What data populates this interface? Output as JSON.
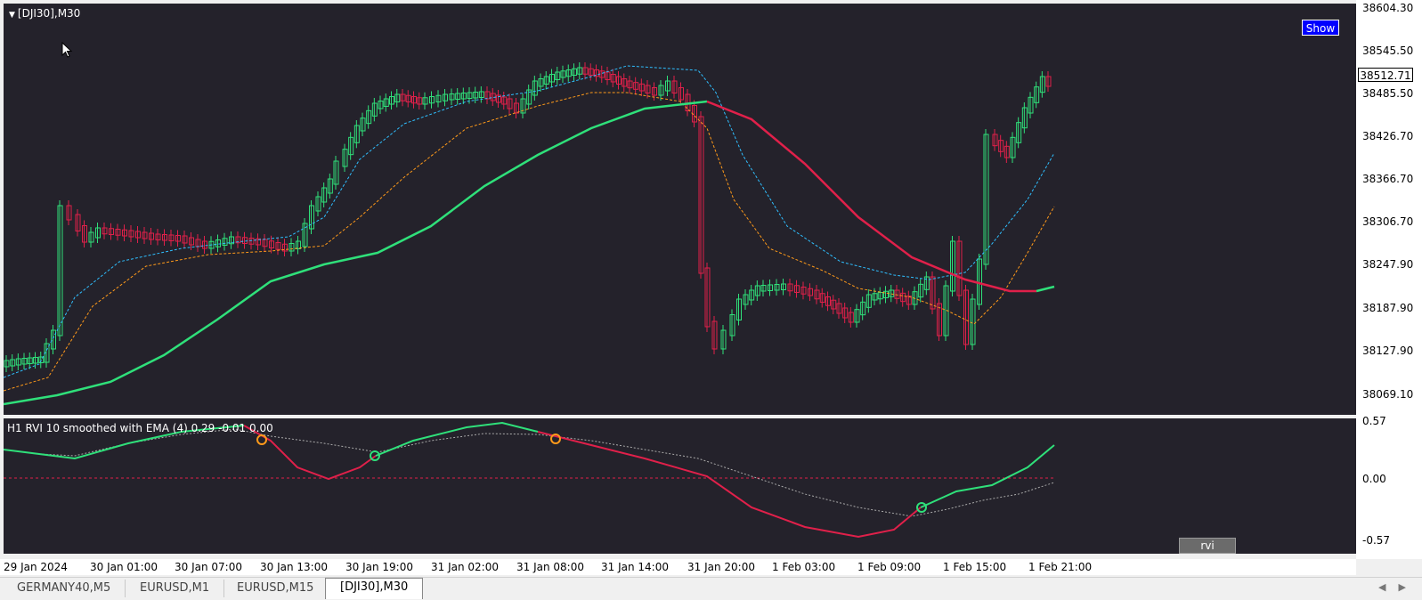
{
  "chart": {
    "title": "[DJI30],M30",
    "show_button": "Show",
    "current_price": "38512.71",
    "price_scale": [
      "38604.30",
      "38545.50",
      "38485.50",
      "38426.70",
      "38366.70",
      "38306.70",
      "38247.90",
      "38187.90",
      "38127.90",
      "38069.10"
    ],
    "indicator_title": "H1 RVI 10 smoothed with EMA (4) 0.29 -0.01 0.00",
    "indicator_scale": [
      "0.57",
      "0.00",
      "-0.57"
    ],
    "indicator_button": "rvi",
    "time_axis": [
      "29 Jan 2024",
      "30 Jan 01:00",
      "30 Jan 07:00",
      "30 Jan 13:00",
      "30 Jan 19:00",
      "31 Jan 02:00",
      "31 Jan 08:00",
      "31 Jan 14:00",
      "31 Jan 20:00",
      "1 Feb 03:00",
      "1 Feb 09:00",
      "1 Feb 15:00",
      "1 Feb 21:00"
    ],
    "colors": {
      "background": "#24222b",
      "bull": "#2fe07a",
      "bear": "#e0204a",
      "ema_fast": "#2fbfff",
      "ema_slow": "#ff9a1a"
    }
  },
  "tabs": [
    {
      "label": "GERMANY40,M5",
      "active": false
    },
    {
      "label": "EURUSD,M1",
      "active": false
    },
    {
      "label": "EURUSD,M15",
      "active": false
    },
    {
      "label": "[DJI30],M30",
      "active": true
    }
  ],
  "icons": {
    "collapse": "triangle-down-icon",
    "cursor": "mouse-pointer-icon",
    "scroll_left": "chevron-left-icon",
    "scroll_right": "chevron-right-icon"
  }
}
